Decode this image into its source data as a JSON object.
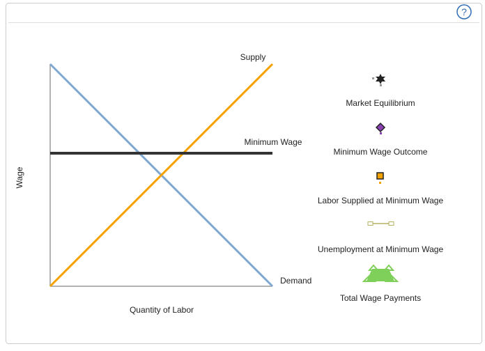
{
  "help_button": "?",
  "graph": {
    "y_axis_label": "Wage",
    "x_axis_label": "Quantity of Labor",
    "curve_labels": {
      "supply": "Supply",
      "minimum_wage": "Minimum Wage",
      "demand": "Demand"
    }
  },
  "legend": [
    "Market Equilibrium",
    "Minimum Wage Outcome",
    "Labor Supplied at Minimum Wage",
    "Unemployment at Minimum Wage",
    "Total Wage Payments"
  ]
}
